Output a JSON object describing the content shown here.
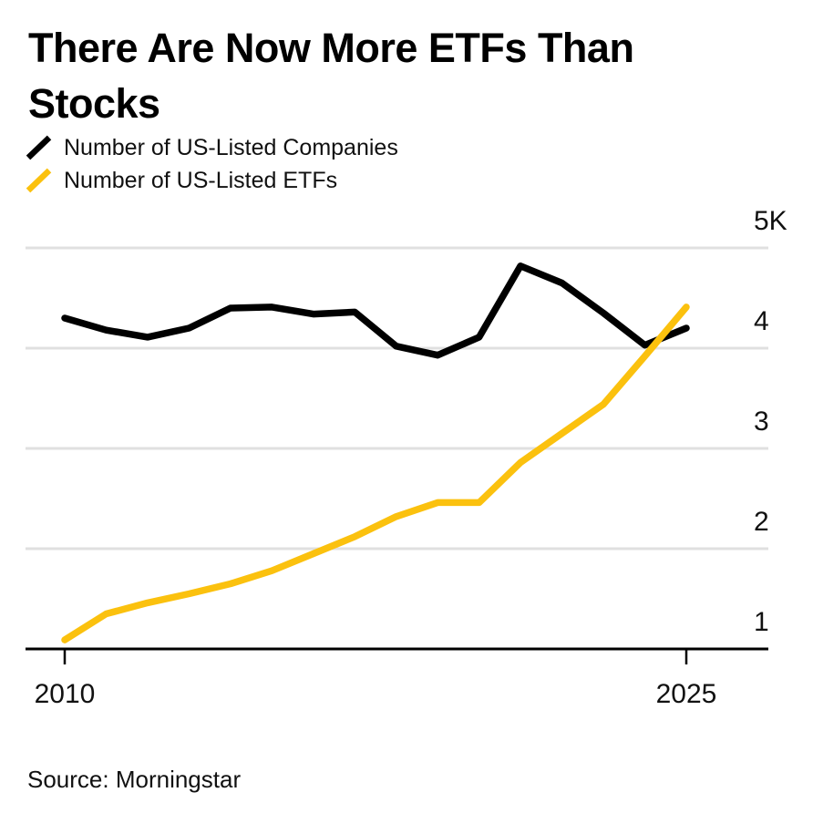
{
  "header": {
    "title": "There Are Now More ETFs Than Stocks"
  },
  "legend": {
    "items": [
      {
        "label": "Number of US-Listed Companies",
        "color": "#000000"
      },
      {
        "label": "Number of US-Listed ETFs",
        "color": "#FBC10E"
      }
    ]
  },
  "footer": {
    "source": "Source: Morningstar"
  },
  "colors": {
    "companies_line": "#000000",
    "etfs_line": "#FBC10E",
    "gridline": "#E0E0E0",
    "axis": "#000000",
    "tick_text": "#111111"
  },
  "chart_data": {
    "type": "line",
    "x": [
      2010,
      2011,
      2012,
      2013,
      2014,
      2015,
      2016,
      2017,
      2018,
      2019,
      2020,
      2021,
      2022,
      2023,
      2024,
      2025
    ],
    "series": [
      {
        "name": "Number of US-Listed Companies",
        "color": "#000000",
        "values": [
          4300,
          4180,
          4110,
          4200,
          4400,
          4410,
          4340,
          4360,
          4020,
          3930,
          4110,
          4820,
          4650,
          4350,
          4030,
          4200
        ]
      },
      {
        "name": "Number of US-Listed ETFs",
        "color": "#FBC10E",
        "values": [
          1090,
          1350,
          1460,
          1550,
          1650,
          1780,
          1950,
          2120,
          2320,
          2460,
          2460,
          2860,
          3150,
          3440,
          3920,
          4410
        ]
      }
    ],
    "title": "There Are Now More ETFs Than Stocks",
    "xlabel": "",
    "ylabel": "",
    "xlim": [
      2010,
      2025
    ],
    "ylim": [
      1000,
      5000
    ],
    "grid": "horizontal",
    "legend_position": "top-left",
    "y_ticks": [
      {
        "value": 5000,
        "label": "5K"
      },
      {
        "value": 4000,
        "label": "4"
      },
      {
        "value": 3000,
        "label": "3"
      },
      {
        "value": 2000,
        "label": "2"
      },
      {
        "value": 1000,
        "label": "1"
      }
    ],
    "x_ticks": [
      {
        "value": 2010,
        "label": "2010"
      },
      {
        "value": 2025,
        "label": "2025"
      }
    ]
  }
}
